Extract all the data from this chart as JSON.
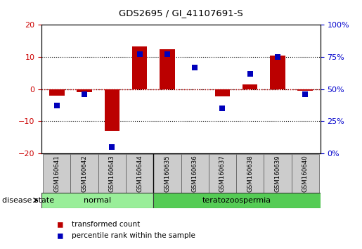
{
  "title": "GDS2695 / GI_41107691-S",
  "samples": [
    "GSM160641",
    "GSM160642",
    "GSM160643",
    "GSM160644",
    "GSM160635",
    "GSM160636",
    "GSM160637",
    "GSM160638",
    "GSM160639",
    "GSM160640"
  ],
  "red_values": [
    -2.0,
    -1.0,
    -13.0,
    13.2,
    12.5,
    0.0,
    -2.2,
    1.5,
    10.5,
    -0.5
  ],
  "blue_values_pct": [
    37,
    46,
    5,
    77,
    77,
    67,
    35,
    62,
    75,
    46
  ],
  "group_divider": 3.5,
  "ylim_left": [
    -20,
    20
  ],
  "yticks_left": [
    -20,
    -10,
    0,
    10,
    20
  ],
  "yticks_right": [
    0,
    25,
    50,
    75,
    100
  ],
  "yticklabels_right": [
    "0%",
    "25%",
    "50%",
    "75%",
    "100%"
  ],
  "red_color": "#bb0000",
  "blue_color": "#0000bb",
  "red_bar_width": 0.55,
  "blue_marker_size": 40,
  "zero_line_color": "#cc0000",
  "tick_label_color_left": "#cc0000",
  "tick_label_color_right": "#0000cc",
  "disease_state_label": "disease state",
  "legend_red": "transformed count",
  "legend_blue": "percentile rank within the sample",
  "normal_color": "#99ee99",
  "terato_color": "#55cc55",
  "sample_bg_color": "#cccccc",
  "normal_label": "normal",
  "terato_label": "teratozoospermia"
}
